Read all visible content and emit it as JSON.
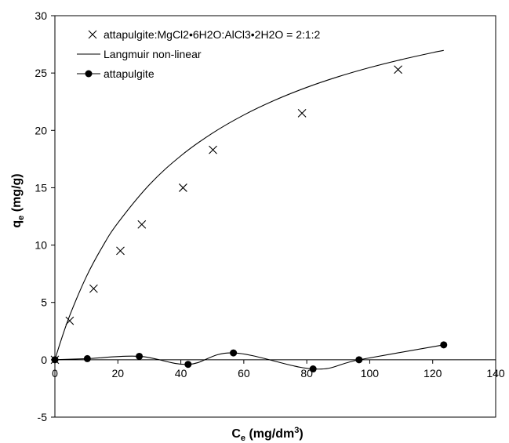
{
  "chart_data": {
    "type": "scatter",
    "xlabel_main": "C",
    "xlabel_sub": "e",
    "xlabel_units_pre": " (mg/dm",
    "xlabel_units_sup": "3",
    "xlabel_units_post": ")",
    "ylabel_main": "q",
    "ylabel_sub": "e",
    "ylabel_units": " (mg/g)",
    "xlim": [
      0,
      140
    ],
    "ylim": [
      -5,
      30
    ],
    "xticks": [
      0,
      20,
      40,
      60,
      80,
      100,
      120,
      140
    ],
    "yticks": [
      -5,
      0,
      5,
      10,
      15,
      20,
      25,
      30
    ],
    "legend_position": "top-left",
    "series": [
      {
        "name": "attapulgite:MgCl2•6H2O:AlCl3•2H2O = 2:1:2",
        "marker": "x",
        "x": [
          0,
          4.7,
          12.3,
          20.8,
          27.6,
          40.7,
          50.2,
          78.5,
          109.0
        ],
        "y": [
          0,
          3.4,
          6.2,
          9.5,
          11.8,
          15.0,
          18.3,
          21.5,
          25.3
        ]
      },
      {
        "name": "Langmuir non-linear",
        "marker": "line",
        "x": [
          0,
          2,
          5,
          10,
          15,
          20,
          30,
          40,
          50,
          60,
          70,
          80,
          90,
          100,
          110,
          120,
          123.5
        ],
        "y": [
          0,
          1.74,
          4.06,
          7.25,
          9.81,
          11.93,
          15.26,
          17.78,
          19.75,
          21.34,
          22.65,
          23.75,
          24.68,
          25.48,
          26.17,
          26.78,
          26.97
        ]
      },
      {
        "name": "attapulgite",
        "marker": "dot-line",
        "x": [
          0,
          10.3,
          26.8,
          42.3,
          56.7,
          82.0,
          96.6,
          123.5
        ],
        "y": [
          0,
          0.1,
          0.3,
          -0.4,
          0.6,
          -0.8,
          0.0,
          1.3
        ]
      }
    ]
  }
}
